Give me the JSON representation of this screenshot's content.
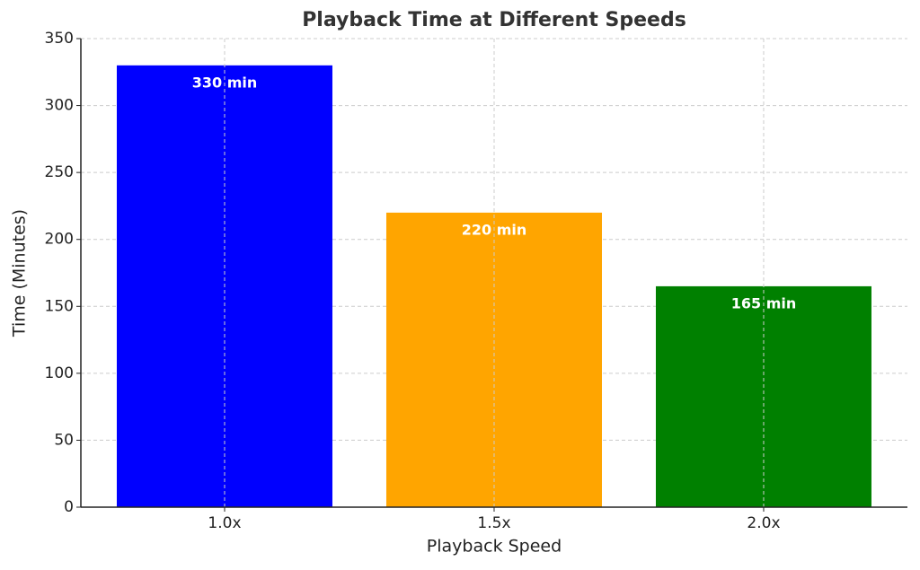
{
  "chart_data": {
    "type": "bar",
    "title": "Playback Time at Different Speeds",
    "x_label": "Playback Speed",
    "y_label": "Time (Minutes)",
    "categories": [
      "1.0x",
      "1.5x",
      "2.0x"
    ],
    "values": [
      330,
      220,
      165
    ],
    "value_labels": [
      "330 min",
      "220 min",
      "165 min"
    ],
    "colors": [
      "#0000ff",
      "#ffa500",
      "#008000"
    ],
    "ylim": [
      0,
      350
    ],
    "yticks": [
      0,
      50,
      100,
      150,
      200,
      250,
      300,
      350
    ],
    "grid": true
  }
}
